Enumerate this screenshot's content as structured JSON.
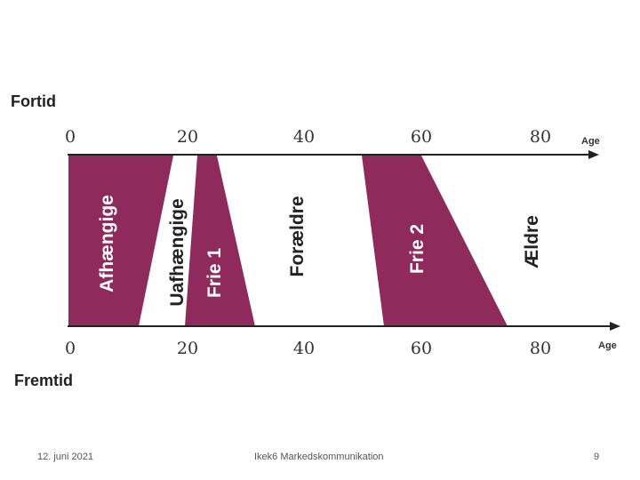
{
  "diagram": {
    "top_label": "Fortid",
    "bottom_label": "Fremtid",
    "axis_title": "Age",
    "ticks": [
      "0",
      "20",
      "40",
      "60",
      "80"
    ],
    "phases": [
      "Afhængige",
      "Uafhængige",
      "Frie 1",
      "Forældre",
      "Frie 2",
      "Ældre"
    ],
    "fill_color": "#8f2a5c",
    "line_color": "#222222"
  },
  "footer": {
    "date": "12. juni 2021",
    "course": "Ikek6 Markedskommunikation",
    "page": "9"
  }
}
